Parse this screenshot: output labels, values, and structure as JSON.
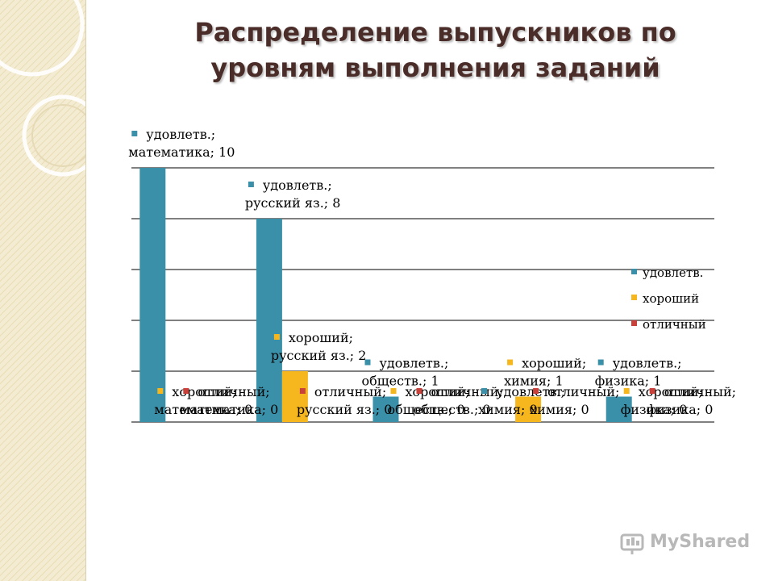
{
  "title_lines": [
    "Распределение выпускников по",
    "уровням выполнения заданий"
  ],
  "watermark": "MyShared",
  "chart_data": {
    "type": "bar",
    "categories": [
      "математика",
      "русский яз.",
      "обществ.",
      "химия",
      "физика"
    ],
    "series": [
      {
        "name": "удовлетв.",
        "values": [
          10,
          8,
          1,
          0,
          1
        ]
      },
      {
        "name": "хороший",
        "values": [
          0,
          2,
          0,
          1,
          0
        ]
      },
      {
        "name": "отличный",
        "values": [
          0,
          0,
          0,
          0,
          0
        ]
      }
    ],
    "colors": {
      "удовлетв.": "#3a90a8",
      "хороший": "#f5b71d",
      "отличный": "#c9413b"
    },
    "ylim": [
      0,
      10
    ],
    "grid": true,
    "legend": "right",
    "data_labels": [
      {
        "series": 0,
        "category": 0,
        "lines": [
          "удовлетв.;",
          "математика; 10"
        ]
      },
      {
        "series": 0,
        "category": 1,
        "lines": [
          "удовлетв.;",
          "русский яз.; 8"
        ]
      },
      {
        "series": 1,
        "category": 1,
        "lines": [
          "хороший;",
          "русский яз.; 2"
        ]
      },
      {
        "series": 0,
        "category": 2,
        "lines": [
          "удовлетв.;",
          "обществ.; 1"
        ]
      },
      {
        "series": 1,
        "category": 3,
        "lines": [
          "хороший;",
          "химия; 1"
        ]
      },
      {
        "series": 0,
        "category": 4,
        "lines": [
          "удовлетв.;",
          "физика; 1"
        ]
      },
      {
        "series": 1,
        "category": 0,
        "lines": [
          "хороший;",
          "математика; 0"
        ]
      },
      {
        "series": 2,
        "category": 0,
        "lines": [
          "отличный;",
          "математика; 0"
        ]
      },
      {
        "series": 2,
        "category": 1,
        "lines": [
          "отличный;",
          "русский яз.; 0"
        ]
      },
      {
        "series": 1,
        "category": 2,
        "lines": [
          "хороший;",
          "обществ.; 0"
        ]
      },
      {
        "series": 2,
        "category": 2,
        "lines": [
          "отличный;",
          "обществ.; 0"
        ]
      },
      {
        "series": 0,
        "category": 3,
        "lines": [
          "удовлетв.;",
          "химия; 0"
        ]
      },
      {
        "series": 2,
        "category": 3,
        "lines": [
          "отличный;",
          "химия; 0"
        ]
      },
      {
        "series": 1,
        "category": 4,
        "lines": [
          "хороший;",
          "физика; 0"
        ]
      },
      {
        "series": 2,
        "category": 4,
        "lines": [
          "отличный;",
          "физика; 0"
        ]
      }
    ]
  }
}
